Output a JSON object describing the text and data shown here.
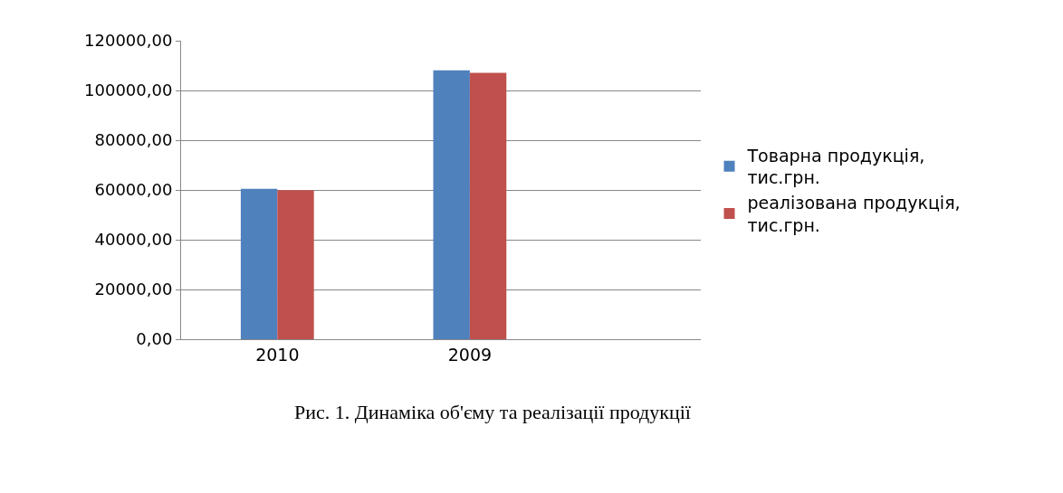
{
  "chart_data": {
    "type": "bar",
    "categories": [
      "2010",
      "2009"
    ],
    "series": [
      {
        "name": "Товарна продукція,\nтис.грн.",
        "color": "#4f81bd",
        "values": [
          60500,
          108100
        ]
      },
      {
        "name": "реалізована продукція,\nтис.грн.",
        "color": "#c0504d",
        "values": [
          59900,
          107100
        ]
      }
    ],
    "ylim": [
      0,
      120000
    ],
    "yticks": [
      {
        "value": 0,
        "label": "0,00"
      },
      {
        "value": 20000,
        "label": "20000,00"
      },
      {
        "value": 40000,
        "label": "40000,00"
      },
      {
        "value": 60000,
        "label": "60000,00"
      },
      {
        "value": 80000,
        "label": "80000,00"
      },
      {
        "value": 100000,
        "label": "100000,00"
      },
      {
        "value": 120000,
        "label": "120000,00"
      }
    ],
    "grid": "y",
    "legend": "right",
    "annotations": [
      "Рис. 1. Динаміка об'єму та реалізації продукції"
    ]
  }
}
